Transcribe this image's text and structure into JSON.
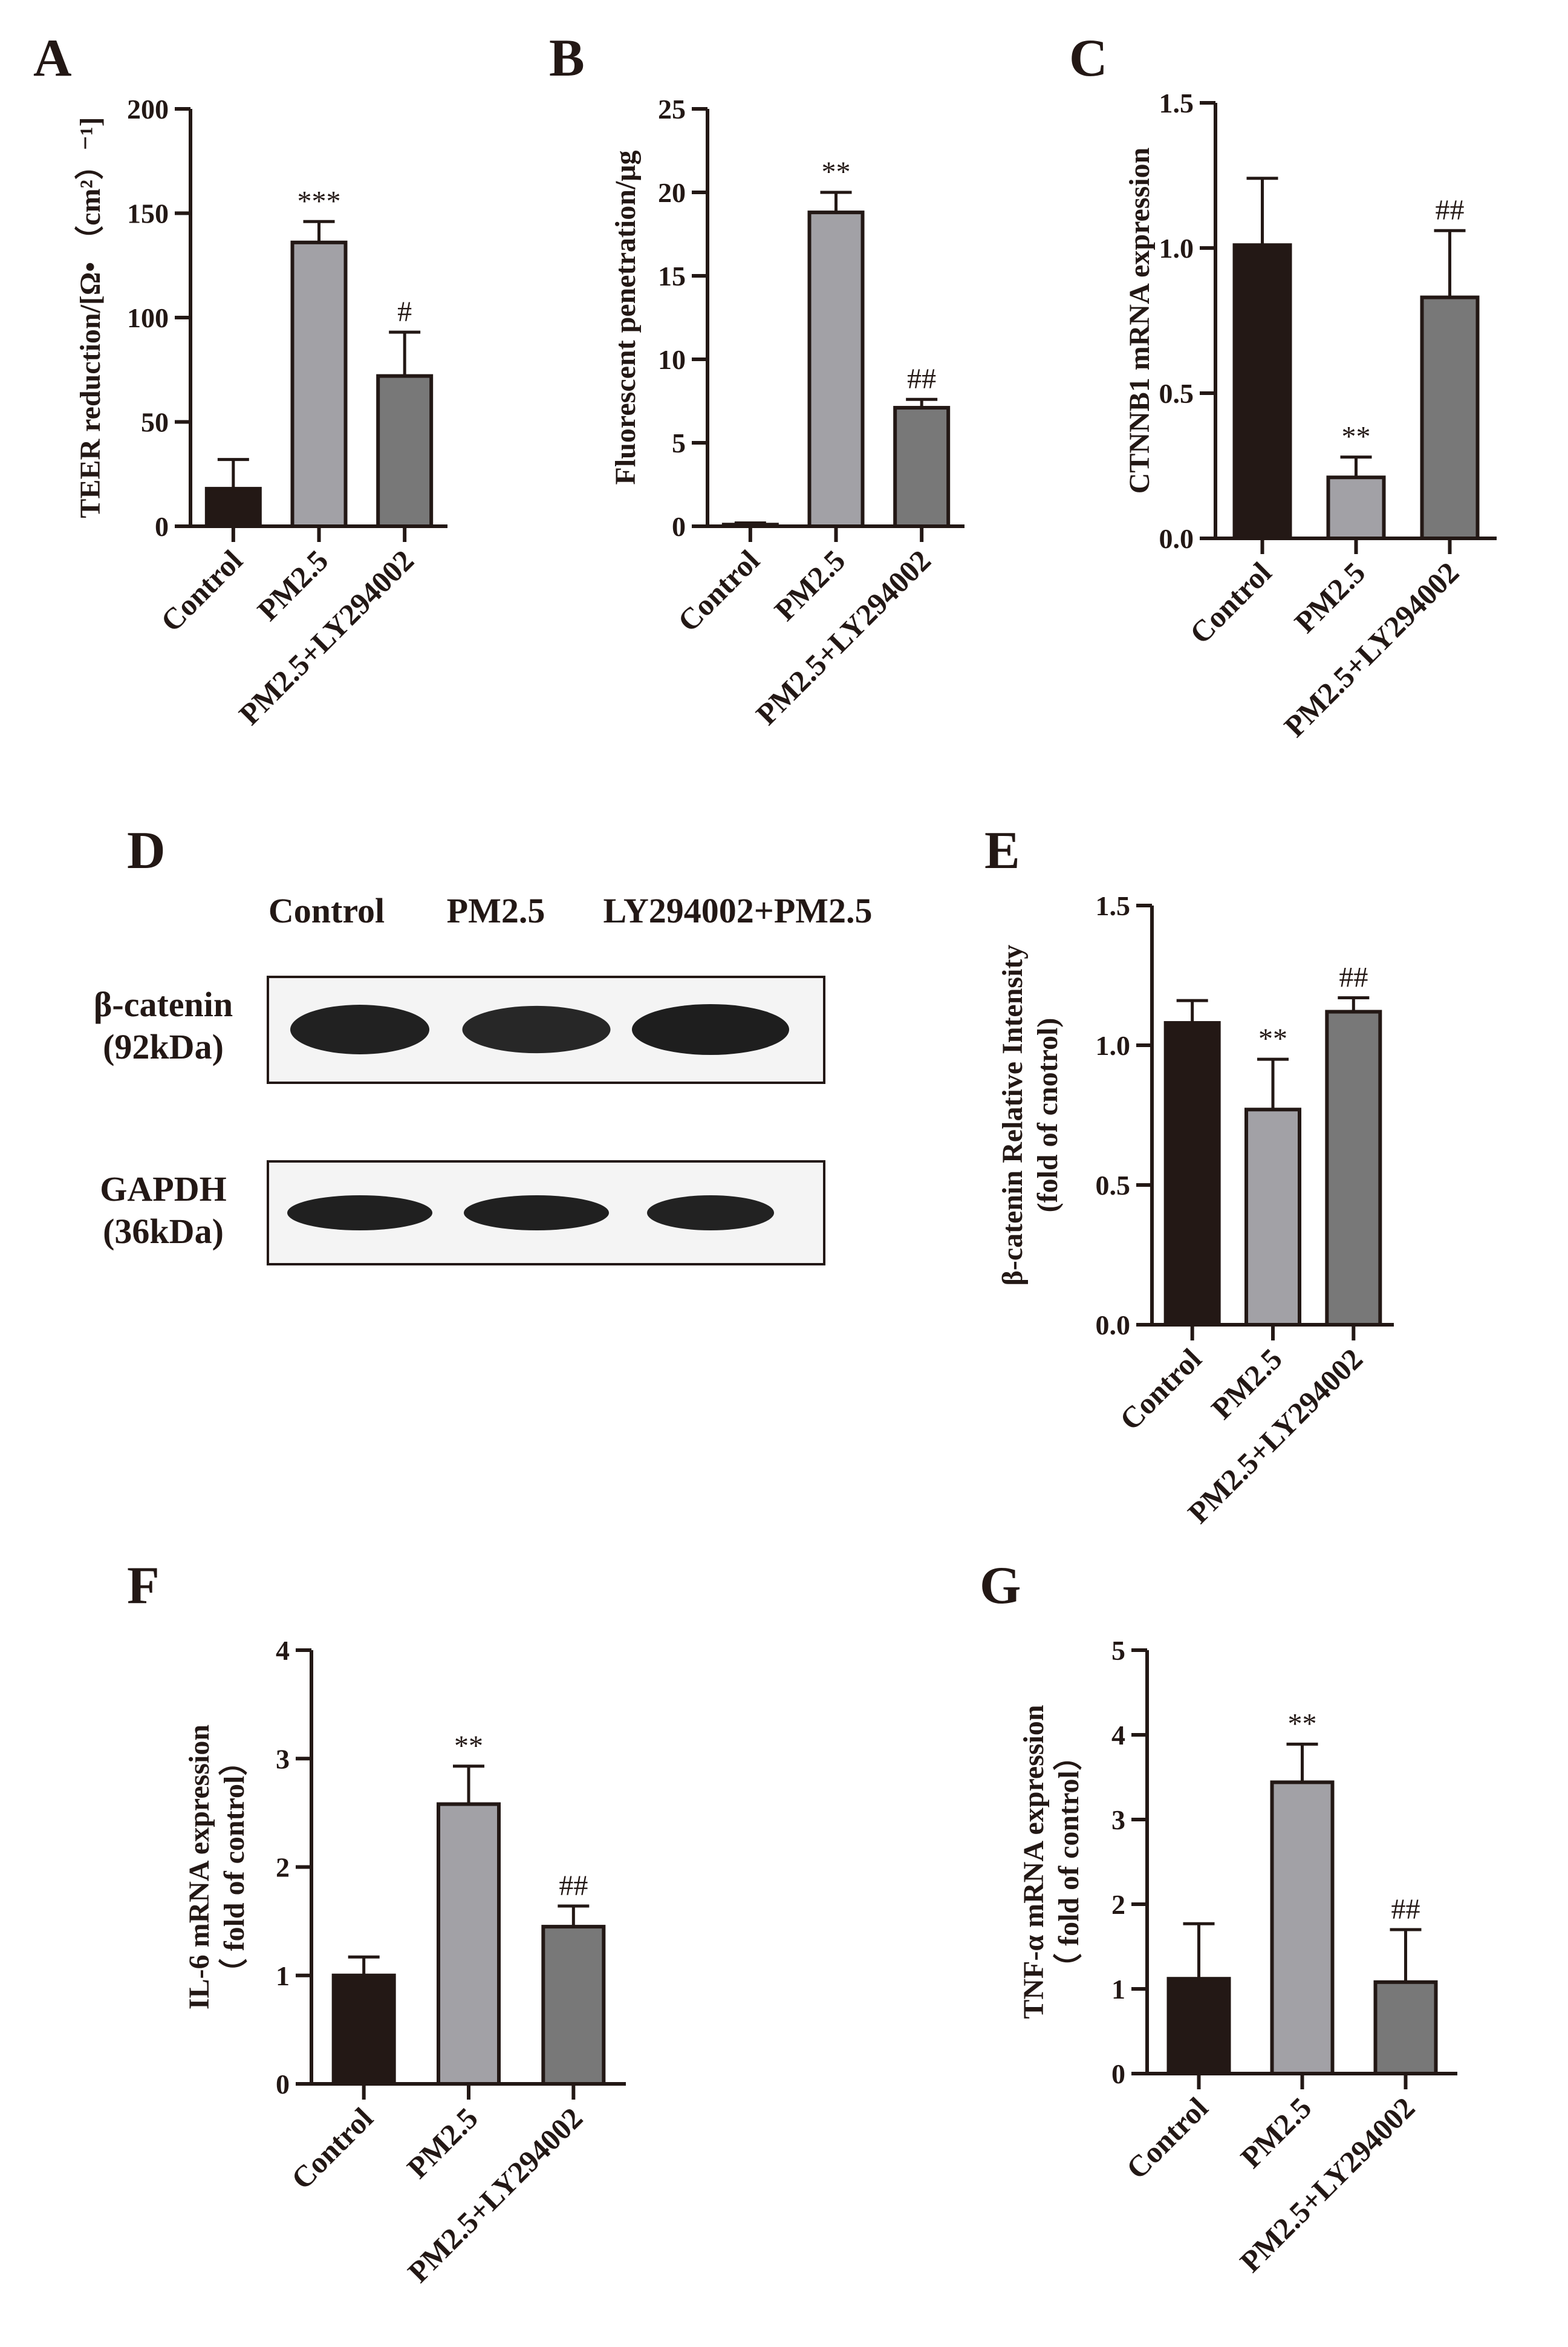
{
  "colors": {
    "axis": "#231815",
    "control": "#231815",
    "pm25": "#a2a1a6",
    "ly": "#787878"
  },
  "chart_data": [
    {
      "panel": "A",
      "type": "bar",
      "categories": [
        "Control",
        "PM2.5",
        "PM2.5+LY294002"
      ],
      "values": [
        18,
        136,
        72
      ],
      "errors": [
        14,
        10,
        21
      ],
      "marks": [
        "",
        "***",
        "#"
      ],
      "ylabel": "TEER reduction/[Ω• （cm²）⁻¹]",
      "ylim": [
        0,
        200
      ],
      "yticks": [
        0,
        50,
        100,
        150,
        200
      ],
      "grid": false,
      "legend": "none"
    },
    {
      "panel": "B",
      "type": "bar",
      "categories": [
        "Control",
        "PM2.5",
        "PM2.5+LY294002"
      ],
      "values": [
        0.1,
        18.8,
        7.1
      ],
      "errors": [
        0.1,
        1.2,
        0.5
      ],
      "marks": [
        "",
        "**",
        "##"
      ],
      "ylabel": "Fluorescent penetration/μg",
      "ylim": [
        0,
        25
      ],
      "yticks": [
        0,
        5,
        10,
        15,
        20,
        25
      ],
      "grid": false,
      "legend": "none"
    },
    {
      "panel": "C",
      "type": "bar",
      "categories": [
        "Control",
        "PM2.5",
        "PM2.5+LY294002"
      ],
      "values": [
        1.01,
        0.21,
        0.83
      ],
      "errors": [
        0.23,
        0.07,
        0.23
      ],
      "marks": [
        "",
        "**",
        "##"
      ],
      "ylabel": "CTNNB1 mRNA expression",
      "ylim": [
        0,
        1.5
      ],
      "yticks": [
        "0.0",
        "0.5",
        "1.0",
        "1.5"
      ],
      "grid": false,
      "legend": "none"
    },
    {
      "panel": "E",
      "type": "bar",
      "categories": [
        "Control",
        "PM2.5",
        "PM2.5+LY294002"
      ],
      "values": [
        1.08,
        0.77,
        1.12
      ],
      "errors": [
        0.08,
        0.18,
        0.05
      ],
      "marks": [
        "",
        "**",
        "##"
      ],
      "ylabel": "β-catenin Relative Intensity",
      "ylabel2": "(fold of cnotrol)",
      "ylim": [
        0,
        1.5
      ],
      "yticks": [
        "0.0",
        "0.5",
        "1.0",
        "1.5"
      ],
      "grid": false,
      "legend": "none"
    },
    {
      "panel": "F",
      "type": "bar",
      "categories": [
        "Control",
        "PM2.5",
        "PM2.5+LY294002"
      ],
      "values": [
        1.0,
        2.58,
        1.45
      ],
      "errors": [
        0.17,
        0.35,
        0.19
      ],
      "marks": [
        "",
        "**",
        "##"
      ],
      "ylabel": "IL-6 mRNA expression",
      "ylabel2": "（ fold of control）",
      "ylim": [
        0,
        4
      ],
      "yticks": [
        0,
        1,
        2,
        3,
        4
      ],
      "grid": false,
      "legend": "none"
    },
    {
      "panel": "G",
      "type": "bar",
      "categories": [
        "Control",
        "PM2.5",
        "PM2.5+LY294002"
      ],
      "values": [
        1.12,
        3.44,
        1.08
      ],
      "errors": [
        0.65,
        0.45,
        0.62
      ],
      "marks": [
        "",
        "**",
        "##"
      ],
      "ylabel": "TNF-α mRNA expression",
      "ylabel2": "（ fold of control）",
      "ylim": [
        0,
        5
      ],
      "yticks": [
        0,
        1,
        2,
        3,
        4,
        5
      ],
      "grid": false,
      "legend": "none"
    }
  ],
  "blot": {
    "panel": "D",
    "lanes": [
      "Control",
      "PM2.5",
      "LY294002+PM2.5"
    ],
    "bands": [
      {
        "name": "β-catenin",
        "size": "(92kDa)",
        "intensity": [
          0.92,
          0.78,
          1.0
        ]
      },
      {
        "name": "GAPDH",
        "size": "(36kDa)",
        "intensity": [
          0.95,
          0.95,
          0.9
        ]
      }
    ]
  }
}
